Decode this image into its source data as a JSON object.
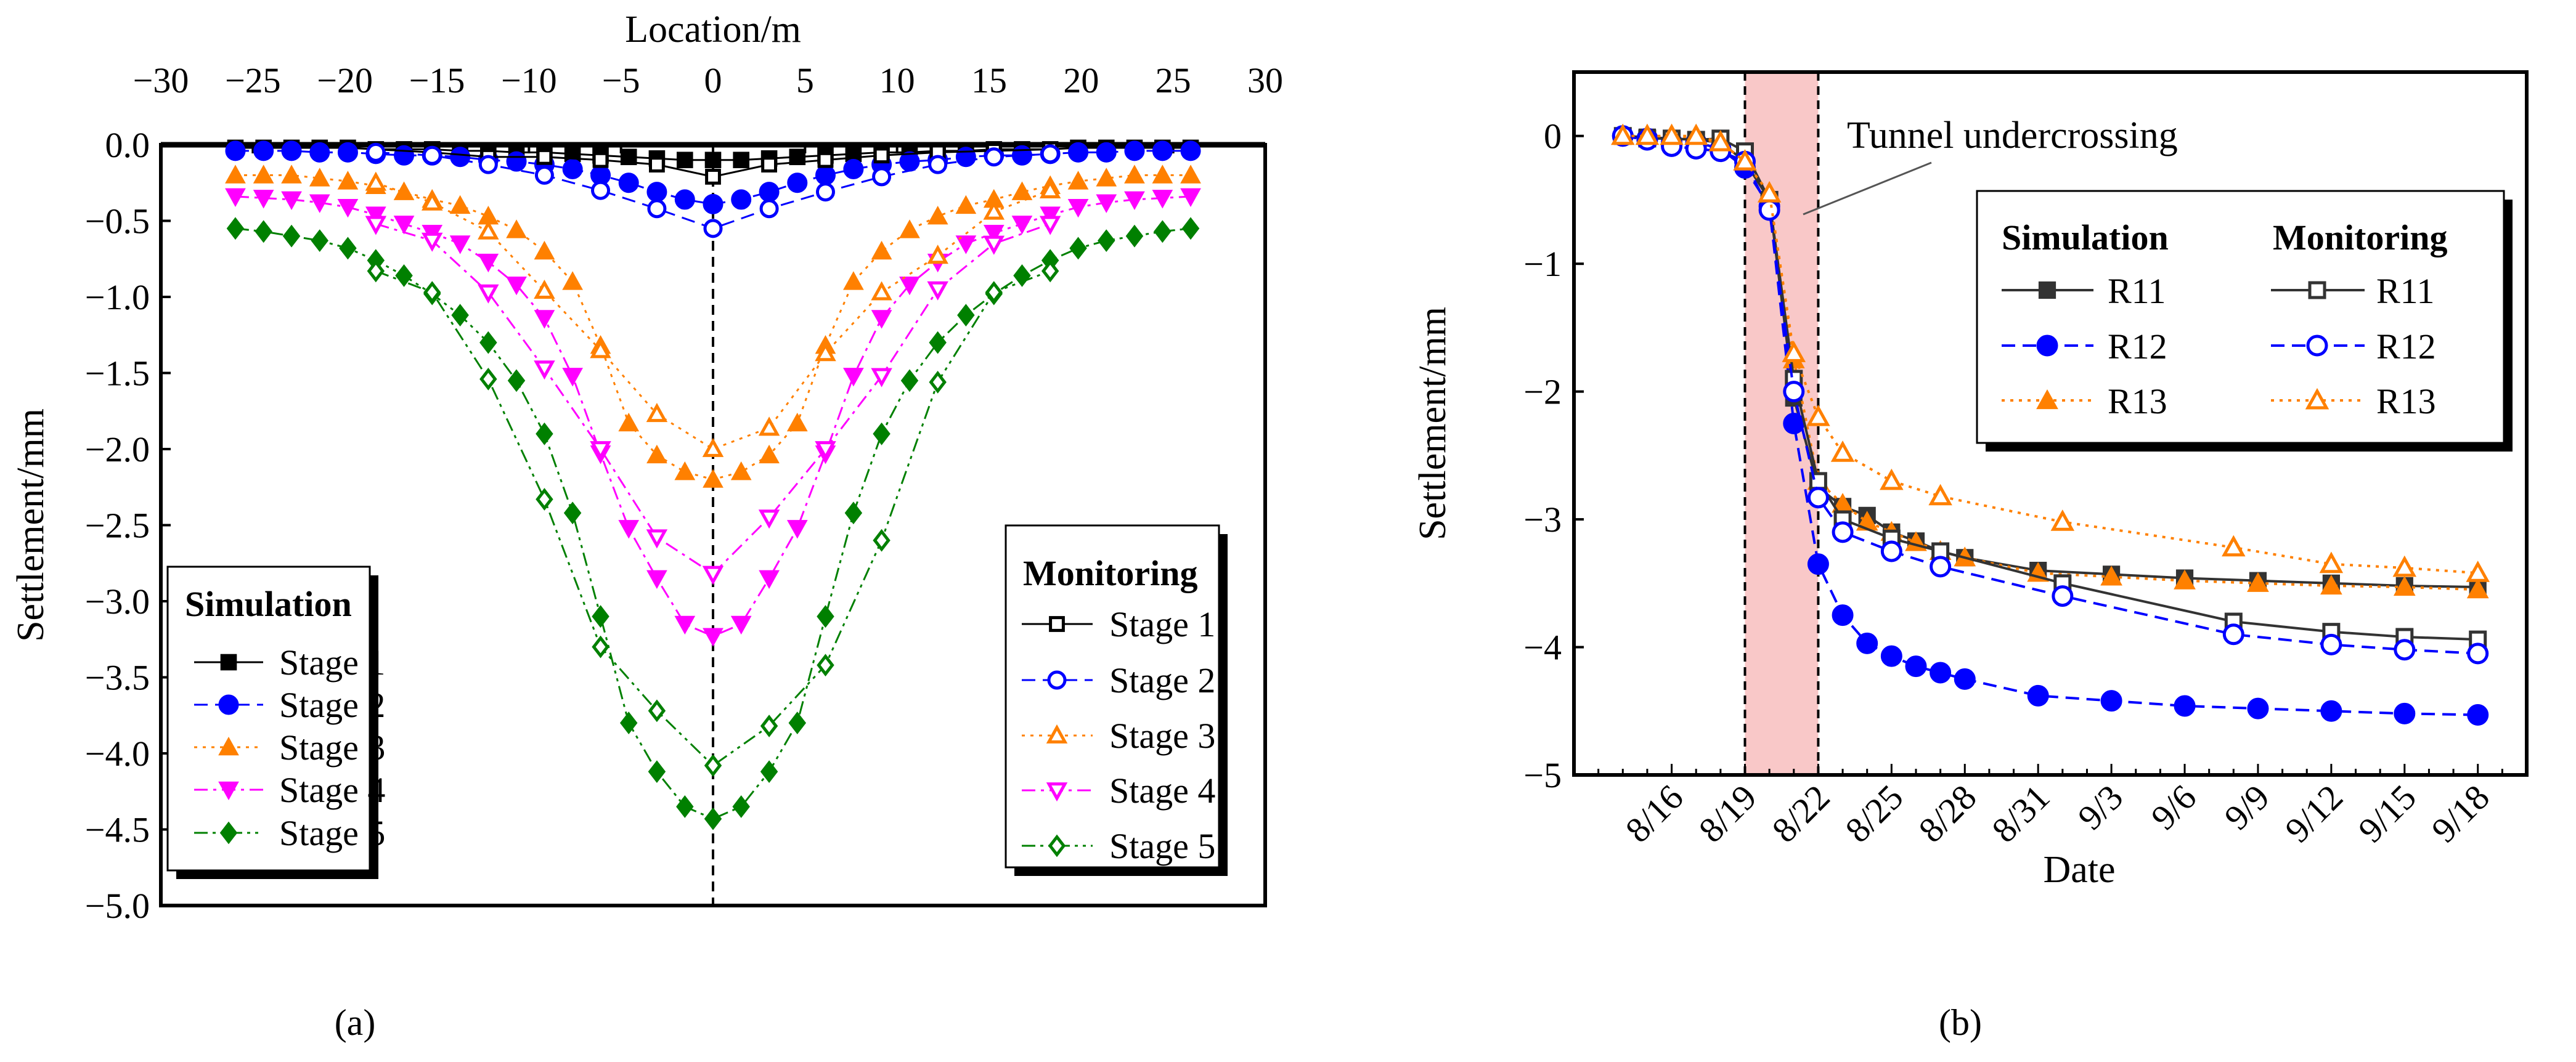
{
  "colors": {
    "stage1": "#000000",
    "stage2": "#0000ff",
    "stage3": "#ff8000",
    "stage4": "#ff00ff",
    "stage5": "#008000",
    "r11": "#333333",
    "r12": "#0000ff",
    "r13": "#ff8000",
    "shade": "#f9c8c8"
  },
  "captions": {
    "a": "(a)",
    "b": "(b)"
  },
  "chart_data": [
    {
      "type": "line",
      "panel": "a",
      "xlabel": "Location/m",
      "ylabel": "Settlement/mm",
      "xlim": [
        -30,
        30
      ],
      "ylim": [
        -5.0,
        0.0
      ],
      "x_axis_position": "top",
      "xticks": [
        "−30",
        "−25",
        "−20",
        "−15",
        "−10",
        "−5",
        "0",
        "5",
        "10",
        "15",
        "20",
        "25",
        "30"
      ],
      "xtick_values": [
        -30,
        -25,
        -20,
        -15,
        -10,
        -5,
        0,
        5,
        10,
        15,
        20,
        25,
        30
      ],
      "yticks": [
        "0.0",
        "−0.5",
        "−1.0",
        "−1.5",
        "−2.0",
        "−2.5",
        "−3.0",
        "−3.5",
        "−4.0",
        "−4.5",
        "−5.0"
      ],
      "ytick_values": [
        0,
        -0.5,
        -1,
        -1.5,
        -2,
        -2.5,
        -3,
        -3.5,
        -4,
        -4.5,
        -5
      ],
      "centerline_x": 0,
      "legends": [
        {
          "title": "Simulation",
          "placement": "bottom-left"
        },
        {
          "title": "Monitoring",
          "placement": "bottom-right"
        }
      ],
      "sim_x": [
        -25.95,
        -24.42,
        -22.9,
        -21.37,
        -19.84,
        -18.32,
        -16.79,
        -15.26,
        -13.74,
        -12.21,
        -10.68,
        -9.16,
        -7.63,
        -6.11,
        -4.58,
        -3.05,
        -1.53,
        0,
        1.53,
        3.05,
        4.58,
        6.11,
        7.63,
        9.16,
        10.68,
        12.21,
        13.74,
        15.26,
        16.79,
        18.32,
        19.84,
        21.37,
        22.9,
        24.42,
        25.95
      ],
      "mon_x": [
        -18.32,
        -15.26,
        -12.21,
        -9.16,
        -6.11,
        -3.05,
        0,
        3.05,
        6.11,
        9.16,
        12.21,
        15.26,
        18.32
      ],
      "series": [
        {
          "name": "Stage 1",
          "group": "Simulation",
          "marker": "square",
          "filled": true,
          "dash": "solid",
          "color_key": "stage1",
          "values": [
            -0.02,
            -0.02,
            -0.02,
            -0.02,
            -0.02,
            -0.03,
            -0.03,
            -0.03,
            -0.04,
            -0.04,
            -0.05,
            -0.05,
            -0.06,
            -0.07,
            -0.08,
            -0.09,
            -0.1,
            -0.1,
            -0.1,
            -0.09,
            -0.08,
            -0.07,
            -0.06,
            -0.05,
            -0.05,
            -0.04,
            -0.04,
            -0.03,
            -0.03,
            -0.03,
            -0.02,
            -0.02,
            -0.02,
            -0.02,
            -0.02
          ]
        },
        {
          "name": "Stage 2",
          "group": "Simulation",
          "marker": "circle",
          "filled": true,
          "dash": "dash",
          "color_key": "stage2",
          "values": [
            -0.04,
            -0.04,
            -0.04,
            -0.05,
            -0.05,
            -0.06,
            -0.07,
            -0.07,
            -0.08,
            -0.1,
            -0.11,
            -0.13,
            -0.16,
            -0.2,
            -0.25,
            -0.31,
            -0.36,
            -0.39,
            -0.36,
            -0.31,
            -0.25,
            -0.2,
            -0.16,
            -0.13,
            -0.11,
            -0.1,
            -0.08,
            -0.07,
            -0.07,
            -0.06,
            -0.05,
            -0.05,
            -0.04,
            -0.04,
            -0.04
          ]
        },
        {
          "name": "Stage 3",
          "group": "Simulation",
          "marker": "triangle-up",
          "filled": true,
          "dash": "dot",
          "color_key": "stage3",
          "values": [
            -0.2,
            -0.2,
            -0.2,
            -0.22,
            -0.24,
            -0.27,
            -0.31,
            -0.36,
            -0.4,
            -0.47,
            -0.56,
            -0.7,
            -0.9,
            -1.32,
            -1.83,
            -2.04,
            -2.15,
            -2.2,
            -2.15,
            -2.04,
            -1.83,
            -1.32,
            -0.9,
            -0.7,
            -0.56,
            -0.47,
            -0.4,
            -0.36,
            -0.31,
            -0.27,
            -0.24,
            -0.22,
            -0.2,
            -0.2,
            -0.2
          ]
        },
        {
          "name": "Stage 4",
          "group": "Simulation",
          "marker": "triangle-down",
          "filled": true,
          "dash": "dashdot",
          "color_key": "stage4",
          "values": [
            -0.34,
            -0.35,
            -0.36,
            -0.38,
            -0.41,
            -0.46,
            -0.52,
            -0.58,
            -0.65,
            -0.77,
            -0.92,
            -1.14,
            -1.52,
            -2.03,
            -2.52,
            -2.85,
            -3.15,
            -3.23,
            -3.15,
            -2.85,
            -2.52,
            -2.03,
            -1.52,
            -1.14,
            -0.92,
            -0.77,
            -0.65,
            -0.58,
            -0.52,
            -0.46,
            -0.41,
            -0.38,
            -0.36,
            -0.35,
            -0.34
          ]
        },
        {
          "name": "Stage 5",
          "group": "Simulation",
          "marker": "diamond",
          "filled": true,
          "dash": "dashdotdot",
          "color_key": "stage5",
          "values": [
            -0.55,
            -0.57,
            -0.6,
            -0.63,
            -0.68,
            -0.76,
            -0.86,
            -0.98,
            -1.12,
            -1.3,
            -1.55,
            -1.9,
            -2.42,
            -3.1,
            -3.8,
            -4.12,
            -4.35,
            -4.43,
            -4.35,
            -4.12,
            -3.8,
            -3.1,
            -2.42,
            -1.9,
            -1.55,
            -1.3,
            -1.12,
            -0.98,
            -0.86,
            -0.76,
            -0.68,
            -0.63,
            -0.6,
            -0.57,
            -0.55
          ]
        },
        {
          "name": "Stage 1",
          "group": "Monitoring",
          "marker": "square",
          "filled": false,
          "dash": "solid",
          "color_key": "stage1",
          "values": [
            -0.03,
            -0.05,
            -0.08,
            -0.08,
            -0.1,
            -0.13,
            -0.21,
            -0.13,
            -0.1,
            -0.07,
            -0.05,
            -0.04,
            -0.03
          ]
        },
        {
          "name": "Stage 2",
          "group": "Monitoring",
          "marker": "circle",
          "filled": false,
          "dash": "dash",
          "color_key": "stage2",
          "values": [
            -0.05,
            -0.07,
            -0.13,
            -0.2,
            -0.3,
            -0.42,
            -0.55,
            -0.42,
            -0.31,
            -0.21,
            -0.13,
            -0.08,
            -0.06
          ]
        },
        {
          "name": "Stage 3",
          "group": "Monitoring",
          "marker": "triangle-up",
          "filled": false,
          "dash": "dot",
          "color_key": "stage3",
          "values": [
            -0.25,
            -0.38,
            -0.57,
            -0.96,
            -1.35,
            -1.77,
            -2.0,
            -1.86,
            -1.37,
            -0.97,
            -0.73,
            -0.44,
            -0.3
          ]
        },
        {
          "name": "Stage 4",
          "group": "Monitoring",
          "marker": "triangle-down",
          "filled": false,
          "dash": "dashdot",
          "color_key": "stage4",
          "values": [
            -0.52,
            -0.63,
            -0.97,
            -1.47,
            -2.0,
            -2.58,
            -2.82,
            -2.45,
            -2.0,
            -1.52,
            -0.95,
            -0.65,
            -0.52
          ]
        },
        {
          "name": "Stage 5",
          "group": "Monitoring",
          "marker": "diamond",
          "filled": false,
          "dash": "dashdotdot",
          "color_key": "stage5",
          "values": [
            -0.83,
            -0.97,
            -1.54,
            -2.33,
            -3.3,
            -3.72,
            -4.08,
            -3.82,
            -3.42,
            -2.6,
            -1.56,
            -0.97,
            -0.83
          ]
        }
      ]
    },
    {
      "type": "line",
      "panel": "b",
      "xlabel": "Date",
      "ylabel": "Settlement/mm",
      "x_unit": "days after 8/14",
      "xlim": [
        -2,
        37
      ],
      "ylim": [
        -5,
        0.5
      ],
      "xticks": [
        "8/16",
        "8/19",
        "8/22",
        "8/25",
        "8/28",
        "8/31",
        "9/3",
        "9/6",
        "9/9",
        "9/12",
        "9/15",
        "9/18"
      ],
      "xtick_values": [
        2,
        5,
        8,
        11,
        14,
        17,
        20,
        23,
        26,
        29,
        32,
        35
      ],
      "yticks": [
        "0",
        "−1",
        "−2",
        "−3",
        "−4",
        "−5"
      ],
      "ytick_values": [
        0,
        -1,
        -2,
        -3,
        -4,
        -5
      ],
      "shaded_region": {
        "x": [
          5,
          8
        ],
        "label": "Tunnel undercrossing"
      },
      "legend": {
        "placement": "top-right",
        "columns": [
          "Simulation",
          "Monitoring"
        ]
      },
      "series": [
        {
          "name": "R11",
          "group": "Simulation",
          "marker": "square",
          "filled": true,
          "dash": "solid",
          "color_key": "r11",
          "x": [
            0,
            1,
            2,
            3,
            4,
            5,
            6,
            7,
            8,
            9,
            10,
            11,
            12,
            13,
            14,
            17,
            20,
            23,
            26,
            29,
            32,
            35
          ],
          "values": [
            0,
            -0.01,
            -0.02,
            -0.03,
            -0.05,
            -0.2,
            -0.5,
            -2.05,
            -2.75,
            -2.9,
            -2.97,
            -3.1,
            -3.17,
            -3.25,
            -3.3,
            -3.4,
            -3.43,
            -3.46,
            -3.48,
            -3.5,
            -3.52,
            -3.53
          ]
        },
        {
          "name": "R12",
          "group": "Simulation",
          "marker": "circle",
          "filled": true,
          "dash": "dash",
          "color_key": "r12",
          "x": [
            0,
            1,
            2,
            3,
            4,
            5,
            6,
            7,
            8,
            9,
            10,
            11,
            12,
            13,
            14,
            17,
            20,
            23,
            26,
            29,
            32,
            35
          ],
          "values": [
            0,
            -0.02,
            -0.05,
            -0.05,
            -0.1,
            -0.25,
            -0.55,
            -2.25,
            -3.35,
            -3.75,
            -3.97,
            -4.07,
            -4.15,
            -4.2,
            -4.25,
            -4.38,
            -4.42,
            -4.46,
            -4.48,
            -4.5,
            -4.52,
            -4.53
          ]
        },
        {
          "name": "R13",
          "group": "Simulation",
          "marker": "triangle-up",
          "filled": true,
          "dash": "dot",
          "color_key": "r13",
          "x": [
            0,
            1,
            2,
            3,
            4,
            5,
            6,
            7,
            8,
            9,
            10,
            11,
            12,
            13,
            14,
            17,
            20,
            23,
            26,
            29,
            32,
            35
          ],
          "values": [
            0,
            0,
            -0.01,
            -0.02,
            -0.05,
            -0.2,
            -0.45,
            -1.75,
            -2.7,
            -2.88,
            -3.02,
            -3.1,
            -3.18,
            -3.25,
            -3.3,
            -3.42,
            -3.45,
            -3.48,
            -3.5,
            -3.52,
            -3.53,
            -3.55
          ]
        },
        {
          "name": "R11",
          "group": "Monitoring",
          "marker": "square",
          "filled": false,
          "dash": "solid",
          "color_key": "r11",
          "x": [
            0,
            1,
            2,
            3,
            4,
            5,
            6,
            7,
            8,
            9,
            11,
            13,
            18,
            25,
            29,
            32,
            35
          ],
          "values": [
            0,
            -0.02,
            -0.02,
            -0.03,
            -0.02,
            -0.12,
            -0.5,
            -1.9,
            -2.7,
            -3.0,
            -3.15,
            -3.25,
            -3.5,
            -3.8,
            -3.88,
            -3.92,
            -3.94
          ]
        },
        {
          "name": "R12",
          "group": "Monitoring",
          "marker": "circle",
          "filled": false,
          "dash": "dash",
          "color_key": "r12",
          "x": [
            0,
            1,
            2,
            3,
            4,
            5,
            6,
            7,
            8,
            9,
            11,
            13,
            18,
            25,
            29,
            32,
            35
          ],
          "values": [
            0,
            -0.03,
            -0.08,
            -0.1,
            -0.12,
            -0.2,
            -0.58,
            -2.0,
            -2.83,
            -3.1,
            -3.25,
            -3.37,
            -3.6,
            -3.9,
            -3.98,
            -4.02,
            -4.05
          ]
        },
        {
          "name": "R13",
          "group": "Monitoring",
          "marker": "triangle-up",
          "filled": false,
          "dash": "dot",
          "color_key": "r13",
          "x": [
            0,
            1,
            2,
            3,
            4,
            5,
            6,
            7,
            8,
            9,
            11,
            13,
            18,
            25,
            29,
            32,
            35
          ],
          "values": [
            0,
            0,
            0,
            0,
            -0.05,
            -0.2,
            -0.45,
            -1.7,
            -2.2,
            -2.48,
            -2.7,
            -2.82,
            -3.02,
            -3.22,
            -3.35,
            -3.38,
            -3.42
          ]
        }
      ]
    }
  ]
}
